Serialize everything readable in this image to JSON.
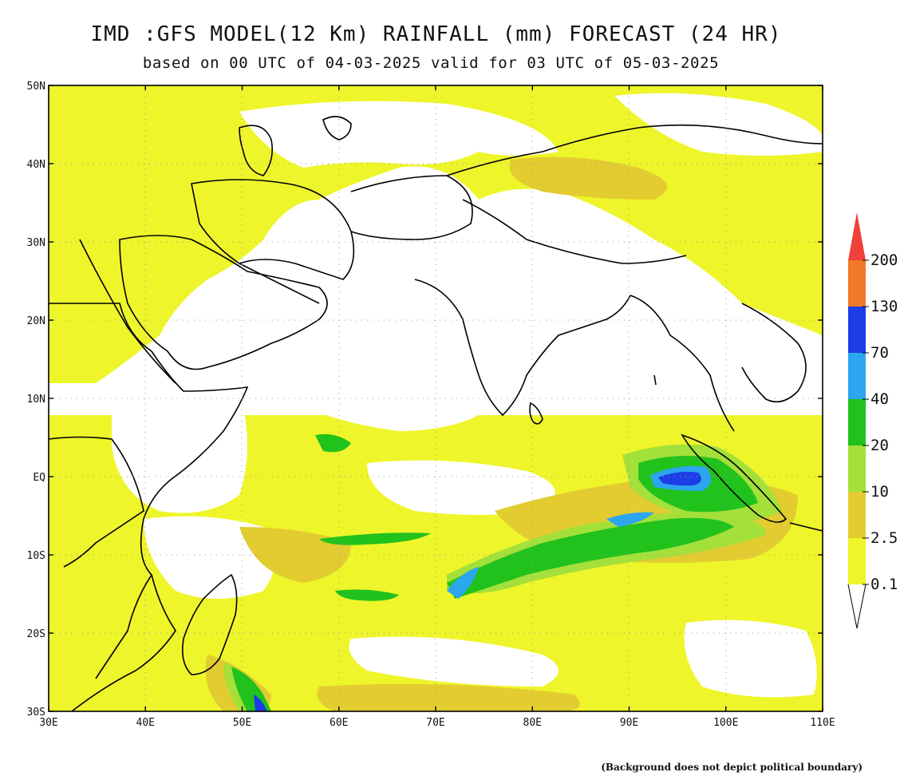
{
  "title": "IMD :GFS MODEL(12 Km) RAINFALL (mm) FORECAST (24 HR)",
  "subtitle": "based on 00 UTC of 04-03-2025 valid for 03 UTC of 05-03-2025",
  "footnote": "(Background does not depict political boundary)",
  "axes": {
    "lat_labels": [
      "50N",
      "40N",
      "30N",
      "20N",
      "10N",
      "EQ",
      "10S",
      "20S",
      "30S"
    ],
    "lon_labels": [
      "30E",
      "40E",
      "50E",
      "60E",
      "70E",
      "80E",
      "90E",
      "100E",
      "110E"
    ],
    "lat_range": [
      -30,
      50
    ],
    "lon_range": [
      30,
      110
    ]
  },
  "legend": {
    "unit": "mm",
    "levels": [
      "0.1",
      "2.5",
      "10",
      "20",
      "40",
      "70",
      "130",
      "200"
    ],
    "colors": [
      "#eef52a",
      "#e2cc30",
      "#a4e03a",
      "#22c21c",
      "#2ba6ef",
      "#1d3de6",
      "#f07a28",
      "#f0403a"
    ]
  },
  "map_colors": {
    "land": "#ffffff",
    "light_rain": "#eef52a",
    "moderate_rain": "#e2cc30",
    "heavy_rain": "#a4e03a",
    "very_heavy": "#22c21c",
    "extreme": "#2ba6ef",
    "severe": "#1d3de6",
    "boundary": "#000000"
  }
}
